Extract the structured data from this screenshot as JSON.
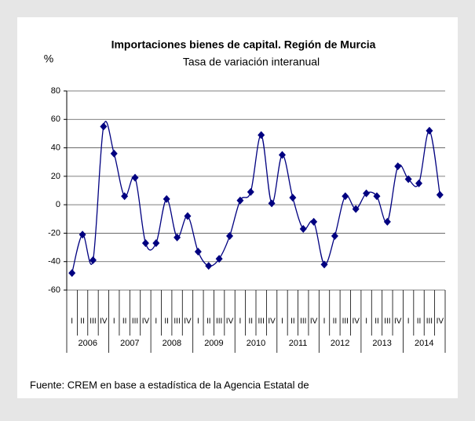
{
  "chart_data": {
    "type": "line",
    "title": "Importaciones bienes de capital. Región de Murcia",
    "subtitle": "Tasa de variación interanual",
    "y_label": "%",
    "categories": [
      "I",
      "II",
      "III",
      "IV",
      "I",
      "II",
      "III",
      "IV",
      "I",
      "II",
      "III",
      "IV",
      "I",
      "II",
      "III",
      "IV",
      "I",
      "II",
      "III",
      "IV",
      "I",
      "II",
      "III",
      "IV",
      "I",
      "II",
      "III",
      "IV",
      "I",
      "II",
      "III",
      "IV",
      "I",
      "II",
      "III",
      "IV"
    ],
    "groups": [
      "2006",
      "2007",
      "2008",
      "2009",
      "2010",
      "2011",
      "2012",
      "2013",
      "2014"
    ],
    "series": [
      {
        "name": "Tasa de variación interanual",
        "color": "#000080",
        "values": [
          -48,
          -21,
          -39,
          55,
          36,
          6,
          19,
          -27,
          -27,
          4,
          -23,
          -8,
          -33,
          -43,
          -38,
          -22,
          3,
          9,
          49,
          1,
          35,
          5,
          -17,
          -12,
          -42,
          -22,
          6,
          -3,
          8,
          6,
          -12,
          27,
          18,
          15,
          52,
          7
        ]
      }
    ],
    "ylim": [
      -60,
      80
    ],
    "yticks": [
      -60,
      -40,
      -20,
      0,
      20,
      40,
      60,
      80
    ],
    "grid": true,
    "source": "Fuente: CREM en base a estadística de la Agencia Estatal de"
  }
}
